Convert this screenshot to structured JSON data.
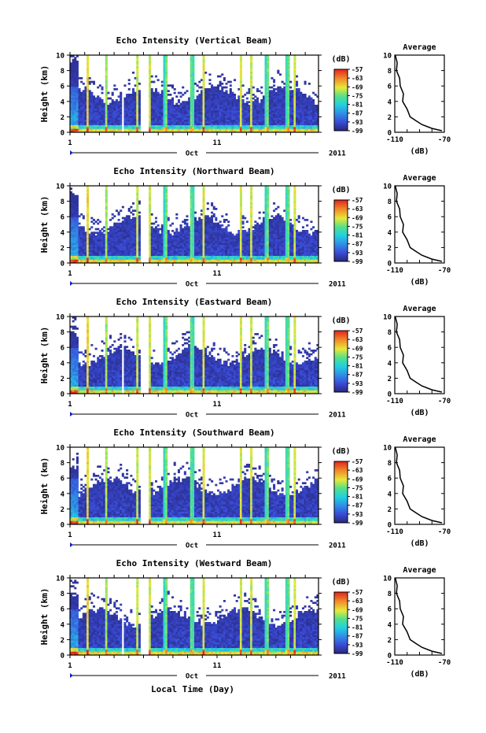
{
  "chart_data": {
    "type": "heatmap",
    "panels": [
      {
        "title": "Echo Intensity (Vertical Beam)"
      },
      {
        "title": "Echo Intensity (Northward Beam)"
      },
      {
        "title": "Echo Intensity (Eastward Beam)"
      },
      {
        "title": "Echo Intensity (Southward Beam)"
      },
      {
        "title": "Echo Intensity (Westward Beam)"
      }
    ],
    "ylabel": "Height (km)",
    "y_ticks": [
      "0",
      "2",
      "4",
      "6",
      "8",
      "10"
    ],
    "ylim": [
      0,
      10
    ],
    "x_tick_labels": [
      "1",
      "11"
    ],
    "month_label": "Oct",
    "year_label": "2011",
    "xlabel": "Local Time (Day)",
    "colorbar": {
      "unit": "(dB)",
      "labels": [
        "-57",
        "-63",
        "-69",
        "-75",
        "-81",
        "-87",
        "-93",
        "-99"
      ],
      "range": [
        -99,
        -57
      ]
    },
    "average": {
      "title": "Average",
      "xlabel": "(dB)",
      "x_ticks": [
        "-110",
        "-70"
      ],
      "xlim": [
        -110,
        -70
      ],
      "y_ticks": [
        "0",
        "2",
        "4",
        "6",
        "8",
        "10"
      ],
      "profile": [
        {
          "h": 0.2,
          "db": -72
        },
        {
          "h": 0.5,
          "db": -80
        },
        {
          "h": 1.0,
          "db": -88
        },
        {
          "h": 1.5,
          "db": -93
        },
        {
          "h": 2.0,
          "db": -97
        },
        {
          "h": 3.0,
          "db": -101
        },
        {
          "h": 4.0,
          "db": -103
        },
        {
          "h": 5.0,
          "db": -104
        },
        {
          "h": 6.0,
          "db": -105
        },
        {
          "h": 7.0,
          "db": -107
        },
        {
          "h": 8.0,
          "db": -108
        },
        {
          "h": 9.0,
          "db": -109
        },
        {
          "h": 10.0,
          "db": -109
        }
      ]
    },
    "rain_days": [
      2.2,
      3.5,
      5.6,
      6.4,
      7.5,
      9.3,
      10.1,
      12.6,
      13.3,
      14.4,
      15.8,
      16.3
    ]
  }
}
